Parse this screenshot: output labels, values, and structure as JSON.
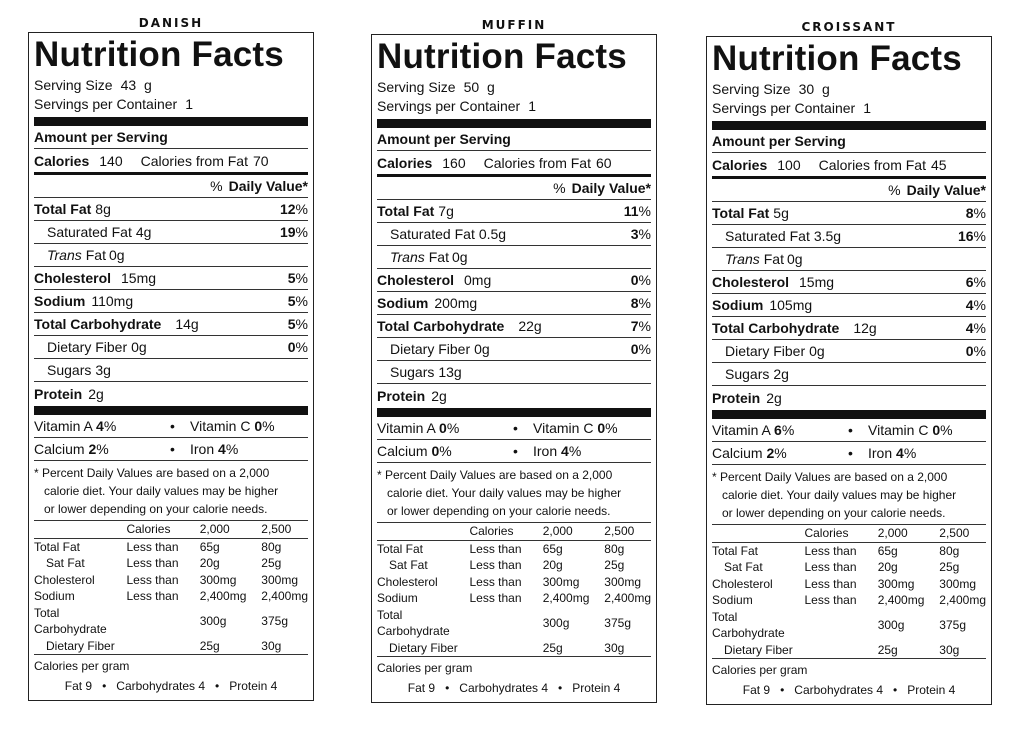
{
  "labels": [
    {
      "product": "Danish",
      "header": "Nutrition Facts",
      "serving_size_label": "Serving Size",
      "serving_size": "43  g",
      "servings_label": "Servings per Container",
      "servings": "1",
      "amount_per_serving": "Amount per Serving",
      "calories_label": "Calories",
      "calories": "140",
      "calories_from_fat_label": "Calories from Fat",
      "calories_from_fat": "70",
      "daily_value_prefix": "%",
      "daily_value_label": "Daily Value*",
      "total_fat_label": "Total Fat",
      "total_fat": "8g",
      "total_fat_pct": "12",
      "pct_sign": "%",
      "sat_fat_label": "Saturated Fat",
      "sat_fat": "4g",
      "sat_fat_pct": "19",
      "trans_label": "Trans",
      "trans_fat_label": "Fat",
      "trans_fat": "0g",
      "cholesterol_label": "Cholesterol",
      "cholesterol": "15mg",
      "cholesterol_pct": "5",
      "sodium_label": "Sodium",
      "sodium": "110mg",
      "sodium_pct": "5",
      "carb_label": "Total Carbohydrate",
      "carb": "14g",
      "carb_pct": "5",
      "fiber_label": "Dietary Fiber",
      "fiber": "0g",
      "fiber_pct": "0",
      "sugars_label": "Sugars",
      "sugars": "3g",
      "protein_label": "Protein",
      "protein": "2g",
      "vit_a_label": "Vitamin A",
      "vit_a": "4",
      "vit_c_label": "Vitamin C",
      "vit_c": "0",
      "calcium_label": "Calcium",
      "calcium": "2",
      "iron_label": "Iron",
      "iron": "4",
      "bullet": "•"
    },
    {
      "product": "Muffin",
      "header": "Nutrition Facts",
      "serving_size_label": "Serving Size",
      "serving_size": "50  g",
      "servings_label": "Servings per Container",
      "servings": "1",
      "amount_per_serving": "Amount per Serving",
      "calories_label": "Calories",
      "calories": "160",
      "calories_from_fat_label": "Calories from Fat",
      "calories_from_fat": "60",
      "daily_value_prefix": "%",
      "daily_value_label": "Daily Value*",
      "total_fat_label": "Total Fat",
      "total_fat": "7g",
      "total_fat_pct": "11",
      "pct_sign": "%",
      "sat_fat_label": "Saturated Fat",
      "sat_fat": "0.5g",
      "sat_fat_pct": "3",
      "trans_label": "Trans",
      "trans_fat_label": "Fat",
      "trans_fat": "0g",
      "cholesterol_label": "Cholesterol",
      "cholesterol": "0mg",
      "cholesterol_pct": "0",
      "sodium_label": "Sodium",
      "sodium": "200mg",
      "sodium_pct": "8",
      "carb_label": "Total Carbohydrate",
      "carb": "22g",
      "carb_pct": "7",
      "fiber_label": "Dietary Fiber",
      "fiber": "0g",
      "fiber_pct": "0",
      "sugars_label": "Sugars",
      "sugars": "13g",
      "protein_label": "Protein",
      "protein": "2g",
      "vit_a_label": "Vitamin A",
      "vit_a": "0",
      "vit_c_label": "Vitamin C",
      "vit_c": "0",
      "calcium_label": "Calcium",
      "calcium": "0",
      "iron_label": "Iron",
      "iron": "4",
      "bullet": "•"
    },
    {
      "product": "Croissant",
      "header": "Nutrition Facts",
      "serving_size_label": "Serving Size",
      "serving_size": "30  g",
      "servings_label": "Servings per Container",
      "servings": "1",
      "amount_per_serving": "Amount per Serving",
      "calories_label": "Calories",
      "calories": "100",
      "calories_from_fat_label": "Calories from Fat",
      "calories_from_fat": "45",
      "daily_value_prefix": "%",
      "daily_value_label": "Daily Value*",
      "total_fat_label": "Total Fat",
      "total_fat": "5g",
      "total_fat_pct": "8",
      "pct_sign": "%",
      "sat_fat_label": "Saturated Fat",
      "sat_fat": "3.5g",
      "sat_fat_pct": "16",
      "trans_label": "Trans",
      "trans_fat_label": "Fat",
      "trans_fat": "0g",
      "cholesterol_label": "Cholesterol",
      "cholesterol": "15mg",
      "cholesterol_pct": "6",
      "sodium_label": "Sodium",
      "sodium": "105mg",
      "sodium_pct": "4",
      "carb_label": "Total Carbohydrate",
      "carb": "12g",
      "carb_pct": "4",
      "fiber_label": "Dietary Fiber",
      "fiber": "0g",
      "fiber_pct": "0",
      "sugars_label": "Sugars",
      "sugars": "2g",
      "protein_label": "Protein",
      "protein": "2g",
      "vit_a_label": "Vitamin A",
      "vit_a": "6",
      "vit_c_label": "Vitamin C",
      "vit_c": "0",
      "calcium_label": "Calcium",
      "calcium": "2",
      "iron_label": "Iron",
      "iron": "4",
      "bullet": "•"
    }
  ],
  "footnote": {
    "line1": "* Percent Daily Values are based on a 2,000",
    "line2": "calorie diet. Your daily values may be higher",
    "line3": "or lower depending on your calorie needs.",
    "table_header": [
      "",
      "Calories",
      "2,000",
      "2,500"
    ],
    "table_rows": [
      [
        "Total Fat",
        "Less than",
        "65g",
        "80g"
      ],
      [
        "Sat Fat",
        "Less than",
        "20g",
        "25g"
      ],
      [
        "Cholesterol",
        "Less than",
        "300mg",
        "300mg"
      ],
      [
        "Sodium",
        "Less than",
        "2,400mg",
        "2,400mg"
      ],
      [
        "Total Carbohydrate",
        "",
        "300g",
        "375g"
      ],
      [
        "Dietary Fiber",
        "",
        "25g",
        "30g"
      ]
    ],
    "cal_per_gram_label": "Calories per gram",
    "fat": "Fat 9",
    "carbs": "Carbohydrates 4",
    "protein": "Protein 4",
    "bullet": "•"
  }
}
